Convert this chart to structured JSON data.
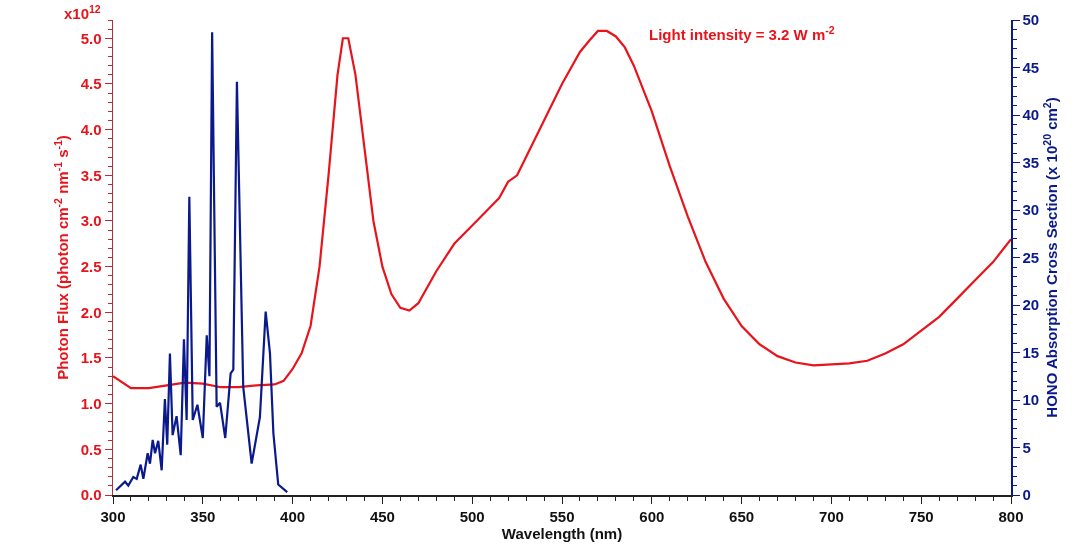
{
  "chart_data": {
    "type": "line",
    "xlabel": "Wavelength (nm)",
    "ylabel": "Photon Flux (photon cm$^{-2}$ nm$^{-1}$ s$^{-1}$)",
    "y2label": "HONO Absorption Cross Section (x 10$^{20}$ cm$^{2}$)",
    "annotations": [
      "Light intensity = 3.2 W m$^{-2}$",
      "x10$^{12}$"
    ],
    "xlim": [
      300,
      800
    ],
    "xticks": [
      300,
      350,
      400,
      450,
      500,
      550,
      600,
      650,
      700,
      750,
      800
    ],
    "ylim": [
      0,
      5.2
    ],
    "yticks": [
      {
        "value": 0,
        "label": "0.0"
      },
      0.5,
      {
        "value": 1,
        "label": "1.0"
      },
      1.5,
      {
        "value": 2,
        "label": "2.0"
      },
      2.5,
      {
        "value": 3,
        "label": "3.0"
      },
      3.5,
      {
        "value": 4,
        "label": "4.0"
      },
      4.5,
      {
        "value": 5,
        "label": "5.0"
      }
    ],
    "y2lim": [
      0,
      50
    ],
    "y2ticks": [
      0,
      5,
      10,
      15,
      20,
      25,
      30,
      35,
      40,
      45,
      50
    ],
    "grid": false,
    "series": [
      {
        "color": "#e8141c",
        "x": [
          300,
          310,
          320,
          330,
          340,
          350,
          360,
          370,
          380,
          390,
          395,
          400,
          405,
          410,
          415,
          420,
          425,
          428,
          431,
          435,
          440,
          445,
          450,
          455,
          460,
          465,
          470,
          480,
          490,
          500,
          510,
          515,
          520,
          525,
          530,
          540,
          550,
          560,
          565,
          570,
          575,
          580,
          585,
          590,
          600,
          610,
          620,
          630,
          640,
          650,
          660,
          670,
          680,
          690,
          700,
          710,
          720,
          730,
          740,
          750,
          760,
          770,
          780,
          790,
          800
        ],
        "values": [
          1.3,
          1.17,
          1.17,
          1.2,
          1.23,
          1.22,
          1.18,
          1.18,
          1.2,
          1.21,
          1.25,
          1.38,
          1.55,
          1.85,
          2.5,
          3.5,
          4.6,
          5.0,
          5.0,
          4.6,
          3.8,
          3.0,
          2.5,
          2.2,
          2.05,
          2.02,
          2.1,
          2.45,
          2.75,
          2.95,
          3.15,
          3.25,
          3.43,
          3.5,
          3.7,
          4.1,
          4.5,
          4.85,
          4.97,
          5.08,
          5.08,
          5.02,
          4.9,
          4.7,
          4.2,
          3.6,
          3.05,
          2.55,
          2.15,
          1.85,
          1.65,
          1.52,
          1.45,
          1.42,
          1.43,
          1.44,
          1.47,
          1.55,
          1.65,
          1.8,
          1.95,
          2.15,
          2.35,
          2.55,
          2.8
        ]
      },
      {
        "color": "#0a1a8c",
        "axis": "y2",
        "x": [
          301.7,
          306.7,
          308.5,
          311.3,
          313.2,
          315.4,
          316.9,
          319.3,
          320.6,
          322.1,
          323.4,
          325.2,
          327.1,
          328.9,
          330.2,
          331.7,
          333.2,
          335.4,
          337.7,
          339.5,
          341.0,
          342.5,
          344.4,
          347.0,
          350.0,
          352.2,
          353.7,
          355.2,
          357.7,
          359.6,
          362.5,
          365.5,
          367.0,
          369.0,
          372.5,
          377.2,
          381.8,
          385.0,
          387.4,
          389.3,
          392.0,
          397.0
        ],
        "values": [
          0.5,
          1.4,
          1,
          1.9,
          1.7,
          3.2,
          1.7,
          4.4,
          3.3,
          5.8,
          4.4,
          5.7,
          2.6,
          10.1,
          5.3,
          14.9,
          6.3,
          8.3,
          4.2,
          16.4,
          7.9,
          31.4,
          7.9,
          9.5,
          6.0,
          16.8,
          12.5,
          48.7,
          9.3,
          9.7,
          6.0,
          12.8,
          13.2,
          43.5,
          11.4,
          3.3,
          8.2,
          19.3,
          14.9,
          6.5,
          1.1,
          0.3
        ]
      }
    ]
  }
}
